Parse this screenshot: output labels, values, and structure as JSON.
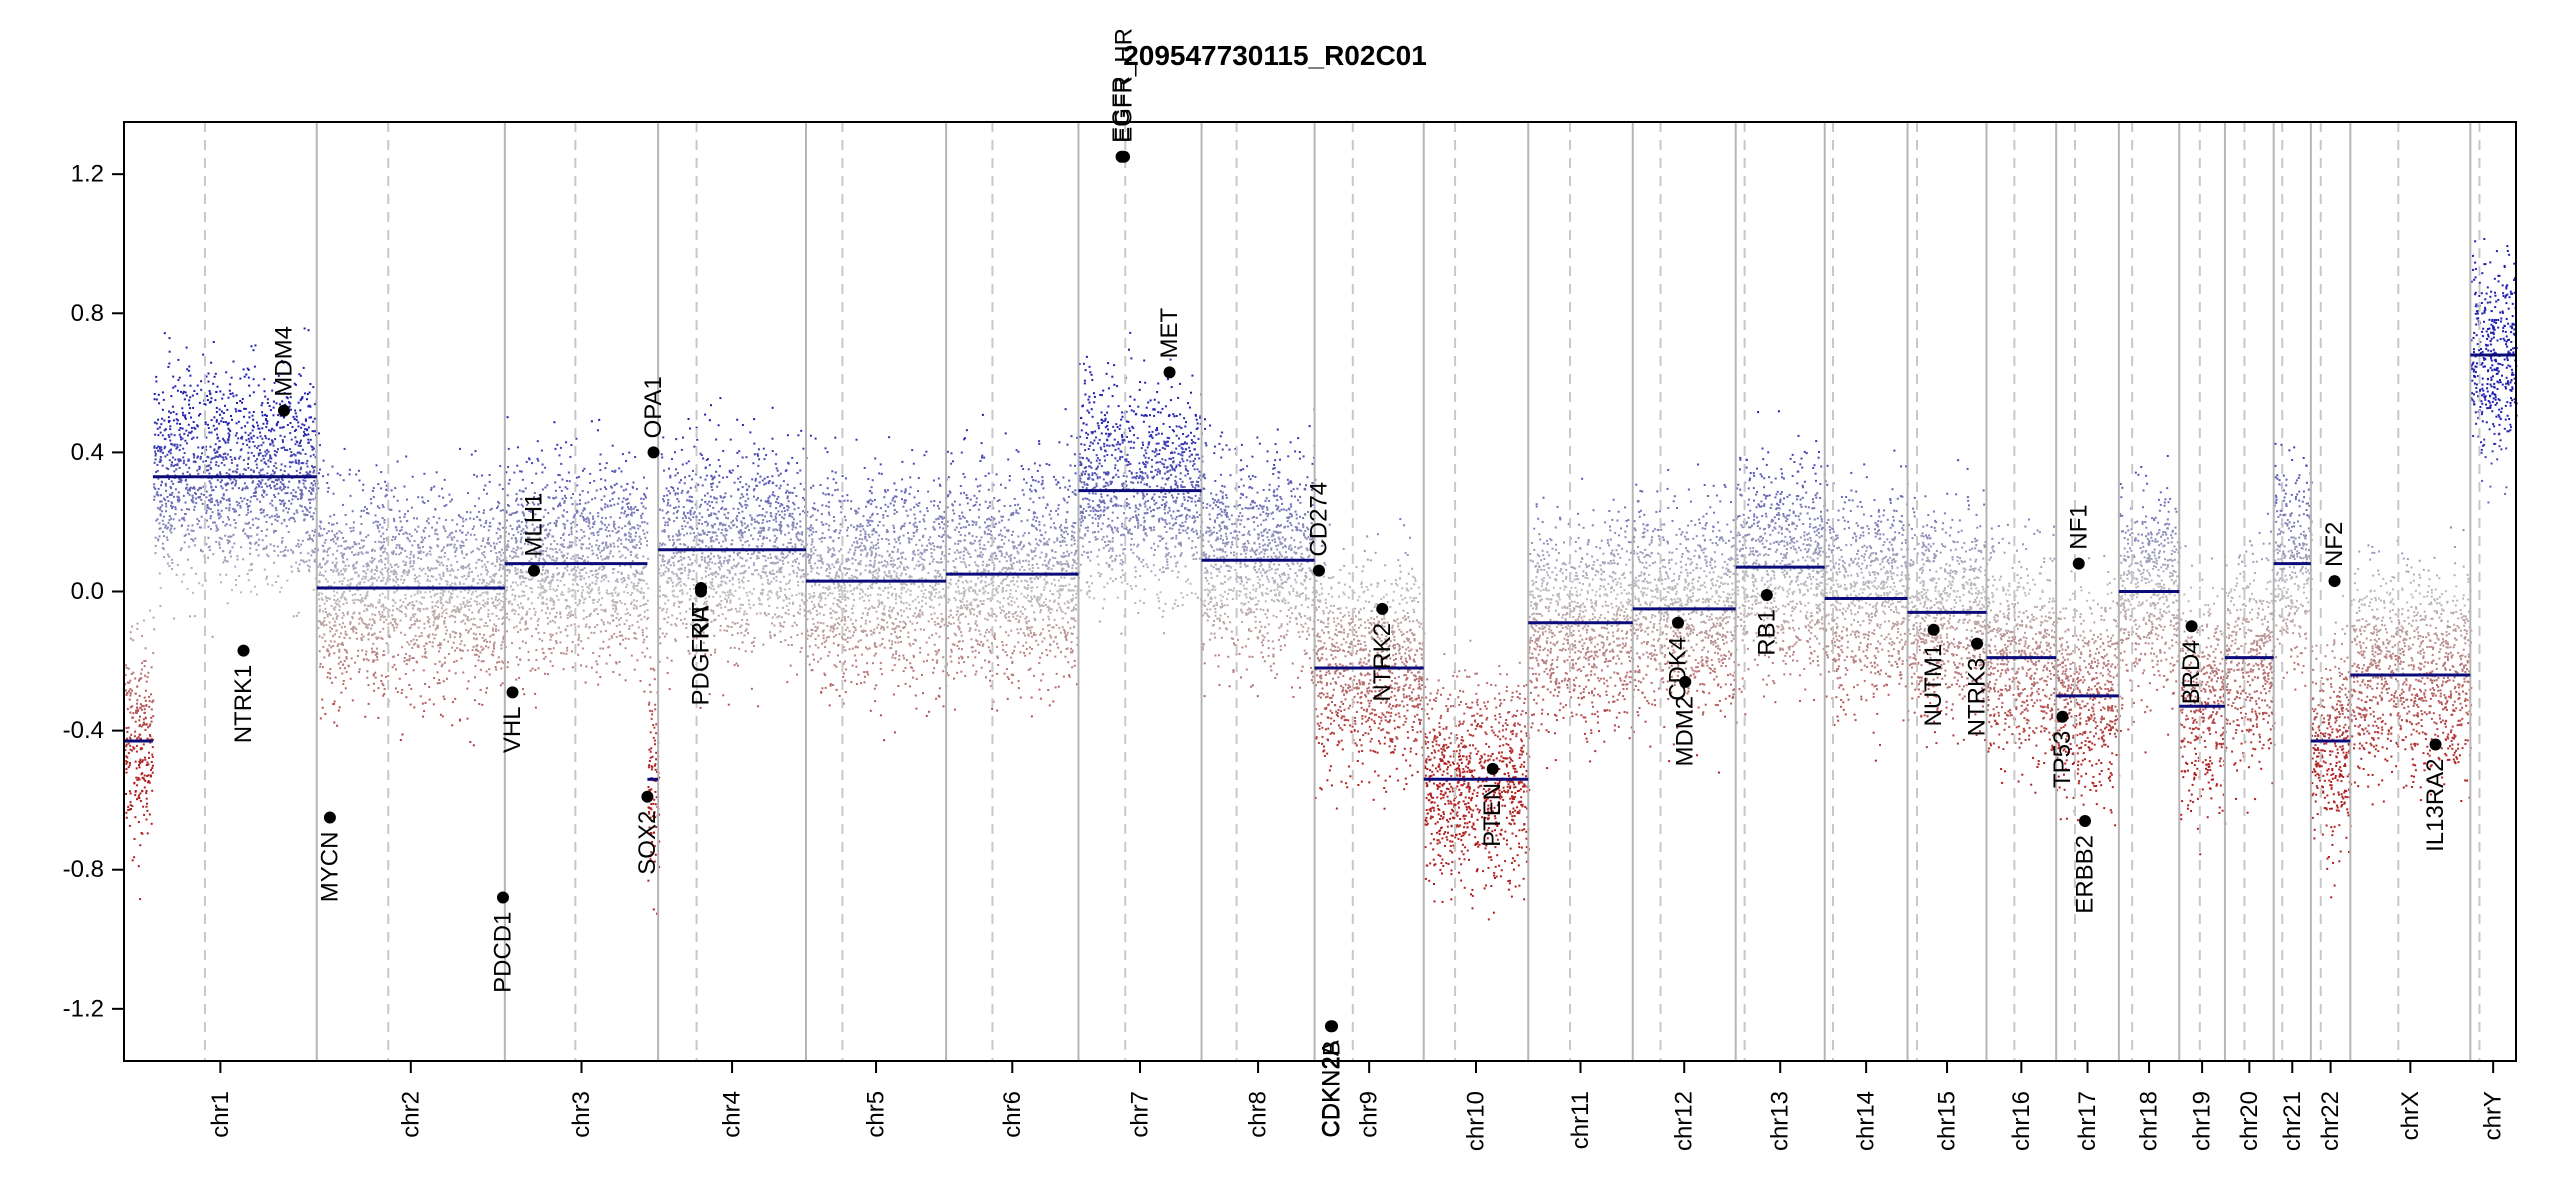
{
  "chart_data": {
    "type": "scatter",
    "title": "209547730115_R02C01",
    "xlabel": "",
    "ylabel": "",
    "ylim": [
      -1.35,
      1.35
    ],
    "yticks": [
      -1.2,
      -0.8,
      -0.4,
      0.0,
      0.4,
      0.8,
      1.2
    ],
    "ytick_labels": [
      "-1.2",
      "-0.8",
      "-0.4",
      "0.0",
      "0.4",
      "0.8",
      "1.2"
    ],
    "colors": {
      "gain": "#1f1fb0",
      "loss": "#b01f1f",
      "neutral": "#bdbdbd",
      "segment": "#0b0b7a",
      "gene_marker": "#000000",
      "border": "#000000"
    },
    "chromosomes": [
      {
        "name": "chr1",
        "length": 249,
        "centromere": 0.42
      },
      {
        "name": "chr2",
        "length": 243,
        "centromere": 0.38
      },
      {
        "name": "chr3",
        "length": 198,
        "centromere": 0.46
      },
      {
        "name": "chr4",
        "length": 191,
        "centromere": 0.26
      },
      {
        "name": "chr5",
        "length": 181,
        "centromere": 0.26
      },
      {
        "name": "chr6",
        "length": 171,
        "centromere": 0.35
      },
      {
        "name": "chr7",
        "length": 159,
        "centromere": 0.38
      },
      {
        "name": "chr8",
        "length": 146,
        "centromere": 0.31
      },
      {
        "name": "chr9",
        "length": 141,
        "centromere": 0.35
      },
      {
        "name": "chr10",
        "length": 135,
        "centromere": 0.3
      },
      {
        "name": "chr11",
        "length": 135,
        "centromere": 0.4
      },
      {
        "name": "chr12",
        "length": 133,
        "centromere": 0.27
      },
      {
        "name": "chr13",
        "length": 115,
        "centromere": 0.1
      },
      {
        "name": "chr14",
        "length": 107,
        "centromere": 0.1
      },
      {
        "name": "chr15",
        "length": 102,
        "centromere": 0.12
      },
      {
        "name": "chr16",
        "length": 90,
        "centromere": 0.4
      },
      {
        "name": "chr17",
        "length": 81,
        "centromere": 0.3
      },
      {
        "name": "chr18",
        "length": 78,
        "centromere": 0.22
      },
      {
        "name": "chr19",
        "length": 59,
        "centromere": 0.45
      },
      {
        "name": "chr20",
        "length": 63,
        "centromere": 0.4
      },
      {
        "name": "chr21",
        "length": 48,
        "centromere": 0.23
      },
      {
        "name": "chr22",
        "length": 51,
        "centromere": 0.25
      },
      {
        "name": "chrX",
        "length": 155,
        "centromere": 0.4
      },
      {
        "name": "chrY",
        "length": 59,
        "centromere": 0.2
      }
    ],
    "segments": [
      {
        "chr": "chr1",
        "start": 0.0,
        "end": 0.15,
        "value": -0.43
      },
      {
        "chr": "chr1",
        "start": 0.15,
        "end": 1.0,
        "value": 0.33
      },
      {
        "chr": "chr2",
        "start": 0.0,
        "end": 1.0,
        "value": 0.01
      },
      {
        "chr": "chr3",
        "start": 0.0,
        "end": 0.93,
        "value": 0.08
      },
      {
        "chr": "chr3",
        "start": 0.93,
        "end": 1.0,
        "value": -0.54
      },
      {
        "chr": "chr4",
        "start": 0.0,
        "end": 1.0,
        "value": 0.12
      },
      {
        "chr": "chr5",
        "start": 0.0,
        "end": 1.0,
        "value": 0.03
      },
      {
        "chr": "chr6",
        "start": 0.0,
        "end": 1.0,
        "value": 0.05
      },
      {
        "chr": "chr7",
        "start": 0.0,
        "end": 1.0,
        "value": 0.29
      },
      {
        "chr": "chr8",
        "start": 0.0,
        "end": 1.0,
        "value": 0.09
      },
      {
        "chr": "chr9",
        "start": 0.0,
        "end": 1.0,
        "value": -0.22
      },
      {
        "chr": "chr10",
        "start": 0.0,
        "end": 1.0,
        "value": -0.54
      },
      {
        "chr": "chr11",
        "start": 0.0,
        "end": 1.0,
        "value": -0.09
      },
      {
        "chr": "chr12",
        "start": 0.0,
        "end": 1.0,
        "value": -0.05
      },
      {
        "chr": "chr13",
        "start": 0.0,
        "end": 1.0,
        "value": 0.07
      },
      {
        "chr": "chr14",
        "start": 0.0,
        "end": 1.0,
        "value": -0.02
      },
      {
        "chr": "chr15",
        "start": 0.0,
        "end": 1.0,
        "value": -0.06
      },
      {
        "chr": "chr16",
        "start": 0.0,
        "end": 1.0,
        "value": -0.19
      },
      {
        "chr": "chr17",
        "start": 0.0,
        "end": 1.0,
        "value": -0.3
      },
      {
        "chr": "chr18",
        "start": 0.0,
        "end": 1.0,
        "value": 0.0
      },
      {
        "chr": "chr19",
        "start": 0.0,
        "end": 1.0,
        "value": -0.33
      },
      {
        "chr": "chr20",
        "start": 0.0,
        "end": 1.0,
        "value": -0.19
      },
      {
        "chr": "chr21",
        "start": 0.0,
        "end": 1.0,
        "value": 0.08
      },
      {
        "chr": "chr22",
        "start": 0.0,
        "end": 1.0,
        "value": -0.43
      },
      {
        "chr": "chrX",
        "start": 0.0,
        "end": 1.0,
        "value": -0.24
      },
      {
        "chr": "chrY",
        "start": 0.0,
        "end": 1.0,
        "value": 0.68
      }
    ],
    "genes": [
      {
        "name": "NTRK1",
        "chr": "chr1",
        "pos": 0.62,
        "value": -0.17
      },
      {
        "name": "MDM4",
        "chr": "chr1",
        "pos": 0.83,
        "value": 0.52
      },
      {
        "name": "MYCN",
        "chr": "chr2",
        "pos": 0.07,
        "value": -0.65
      },
      {
        "name": "PDCD1",
        "chr": "chr2",
        "pos": 0.99,
        "value": -0.88
      },
      {
        "name": "VHL",
        "chr": "chr3",
        "pos": 0.05,
        "value": -0.29
      },
      {
        "name": "MLH1",
        "chr": "chr3",
        "pos": 0.19,
        "value": 0.06
      },
      {
        "name": "SOX2",
        "chr": "chr3",
        "pos": 0.93,
        "value": -0.59
      },
      {
        "name": "OPA1",
        "chr": "chr3",
        "pos": 0.97,
        "value": 0.4
      },
      {
        "name": "PDGFRA",
        "chr": "chr4",
        "pos": 0.29,
        "value": 0.0
      },
      {
        "name": "KIT",
        "chr": "chr4",
        "pos": 0.29,
        "value": 0.01
      },
      {
        "name": "EGFR",
        "chr": "chr7",
        "pos": 0.35,
        "value": 1.25
      },
      {
        "name": "EGFR_HR",
        "chr": "chr7",
        "pos": 0.37,
        "value": 1.25
      },
      {
        "name": "MET",
        "chr": "chr7",
        "pos": 0.74,
        "value": 0.63
      },
      {
        "name": "CD274",
        "chr": "chr9",
        "pos": 0.04,
        "value": 0.06
      },
      {
        "name": "CDKN2A",
        "chr": "chr9",
        "pos": 0.15,
        "value": -1.25
      },
      {
        "name": "CDKN2B",
        "chr": "chr9",
        "pos": 0.16,
        "value": -1.25
      },
      {
        "name": "NTRK2",
        "chr": "chr9",
        "pos": 0.62,
        "value": -0.05
      },
      {
        "name": "PTEN",
        "chr": "chr10",
        "pos": 0.66,
        "value": -0.51
      },
      {
        "name": "CDK4",
        "chr": "chr12",
        "pos": 0.44,
        "value": -0.09
      },
      {
        "name": "MDM2",
        "chr": "chr12",
        "pos": 0.51,
        "value": -0.26
      },
      {
        "name": "RB1",
        "chr": "chr13",
        "pos": 0.35,
        "value": -0.01
      },
      {
        "name": "NUTM1",
        "chr": "chr15",
        "pos": 0.33,
        "value": -0.11
      },
      {
        "name": "NTRK3",
        "chr": "chr15",
        "pos": 0.88,
        "value": -0.15
      },
      {
        "name": "TP53",
        "chr": "chr17",
        "pos": 0.1,
        "value": -0.36
      },
      {
        "name": "NF1",
        "chr": "chr17",
        "pos": 0.36,
        "value": 0.08
      },
      {
        "name": "ERBB2",
        "chr": "chr17",
        "pos": 0.46,
        "value": -0.66
      },
      {
        "name": "BRD4",
        "chr": "chr19",
        "pos": 0.27,
        "value": -0.1
      },
      {
        "name": "NF2",
        "chr": "chr22",
        "pos": 0.6,
        "value": 0.03
      },
      {
        "name": "IL13RA2",
        "chr": "chrX",
        "pos": 0.71,
        "value": -0.44
      }
    ]
  }
}
